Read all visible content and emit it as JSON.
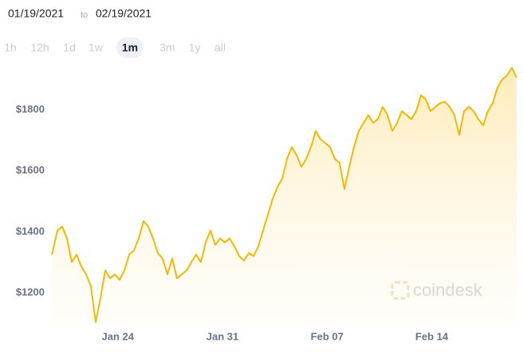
{
  "header": {
    "from": "01/19/2021",
    "to_word": "to",
    "to": "02/19/2021"
  },
  "range_buttons": [
    "1h",
    "12h",
    "1d",
    "1w",
    "1m",
    "3m",
    "1y",
    "all"
  ],
  "active_range": "1m",
  "watermark": "coindesk",
  "chart_data": {
    "type": "area",
    "color": "#f5b800",
    "x": [
      0.59,
      0.96,
      1.28,
      1.6,
      1.92,
      2.24,
      2.56,
      2.88,
      3.2,
      3.52,
      3.84,
      4.16,
      4.48,
      4.8,
      5.12,
      5.44,
      5.76,
      6.08,
      6.4,
      6.72,
      7.04,
      7.36,
      7.68,
      8,
      8.32,
      8.64,
      8.96,
      9.28,
      9.6,
      9.92,
      10.24,
      10.56,
      10.88,
      11.2,
      11.52,
      11.84,
      12.16,
      12.48,
      12.8,
      13.12,
      13.44,
      13.76,
      14.08,
      14.4,
      14.72,
      15.04,
      15.36,
      15.68,
      16,
      16.32,
      16.64,
      16.96,
      17.28,
      17.6,
      17.92,
      18.24,
      18.56,
      18.88,
      19.2,
      19.52,
      19.84,
      20.16,
      20.48,
      20.8,
      21.12,
      21.44,
      21.76,
      22.08,
      22.4,
      22.72,
      23.04,
      23.36,
      23.68,
      24,
      24.32,
      24.64,
      24.96,
      25.28,
      25.6,
      25.92,
      26.24,
      26.56,
      26.88,
      27.2,
      27.52,
      27.84,
      28.16,
      28.48,
      28.8,
      29.12,
      29.44,
      29.76,
      30.08,
      30.4,
      30.72,
      31.04,
      31.36,
      31.68
    ],
    "values": [
      1325,
      1404,
      1417,
      1378,
      1300,
      1325,
      1286,
      1260,
      1221,
      1103,
      1182,
      1273,
      1247,
      1260,
      1242,
      1273,
      1325,
      1339,
      1378,
      1435,
      1417,
      1378,
      1330,
      1312,
      1260,
      1312,
      1247,
      1260,
      1273,
      1300,
      1325,
      1300,
      1365,
      1404,
      1357,
      1378,
      1365,
      1378,
      1352,
      1320,
      1305,
      1330,
      1320,
      1352,
      1404,
      1456,
      1508,
      1548,
      1574,
      1639,
      1678,
      1652,
      1613,
      1639,
      1678,
      1731,
      1704,
      1691,
      1678,
      1639,
      1626,
      1540,
      1613,
      1678,
      1731,
      1757,
      1783,
      1757,
      1770,
      1810,
      1783,
      1731,
      1757,
      1796,
      1783,
      1770,
      1796,
      1848,
      1835,
      1796,
      1810,
      1822,
      1827,
      1810,
      1783,
      1718,
      1796,
      1810,
      1796,
      1770,
      1749,
      1796,
      1822,
      1874,
      1900,
      1913,
      1939,
      1906
    ],
    "xlim": [
      0,
      32
    ],
    "xticks": [
      {
        "value": 5,
        "label": "Jan 24"
      },
      {
        "value": 12,
        "label": "Jan 31"
      },
      {
        "value": 19,
        "label": "Feb 07"
      },
      {
        "value": 26,
        "label": "Feb 14"
      }
    ],
    "ylim": [
      1090,
      1965
    ],
    "yticks": [
      {
        "value": 1200,
        "label": "$1200"
      },
      {
        "value": 1400,
        "label": "$1400"
      },
      {
        "value": 1600,
        "label": "$1600"
      },
      {
        "value": 1800,
        "label": "$1800"
      }
    ],
    "grid": false
  }
}
